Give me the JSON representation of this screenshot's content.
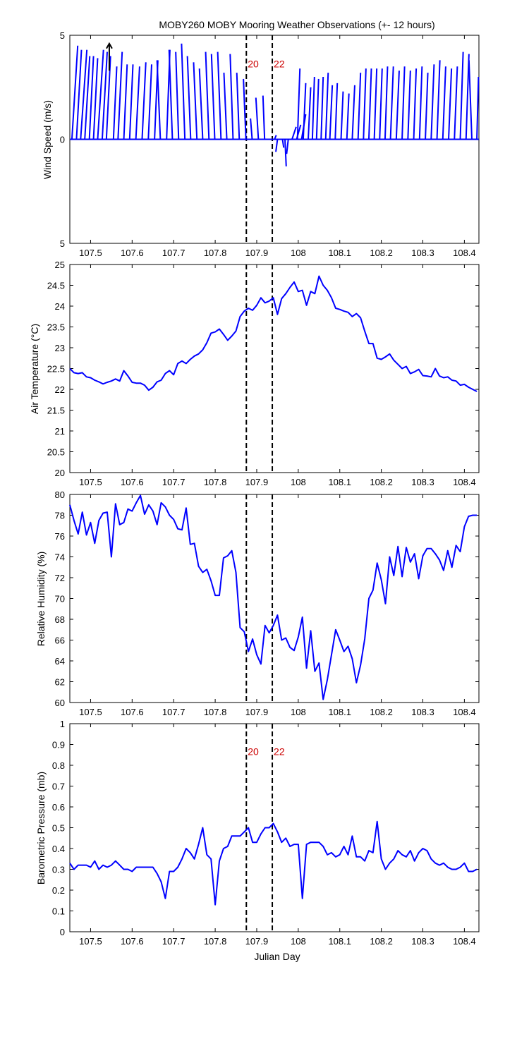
{
  "colors": {
    "series": "#0000ff",
    "axis": "#000000",
    "annotation": "#cc0000",
    "arrow": "#000000"
  },
  "chart_data": [
    {
      "id": "wind",
      "type": "quiver",
      "title": "MOBY260 MOBY Mooring Weather Observations (+- 12 hours)",
      "xlabel": "Julian Day",
      "ylabel": "Wind Speed (m/s)",
      "xlim": [
        107.45,
        108.435
      ],
      "ylim": [
        -5,
        5
      ],
      "y_tick_values": [
        5,
        0,
        -5
      ],
      "y_tick_labels": [
        "5",
        "0",
        "5"
      ],
      "x_ticks": [
        "107.5",
        "107.6",
        "107.7",
        "107.8",
        "107.9",
        "108",
        "108.1",
        "108.2",
        "108.3",
        "108.4"
      ],
      "markers": [
        107.875,
        107.9375
      ],
      "marker_labels": [
        "20",
        "22"
      ],
      "scale_arrow": {
        "x": 107.545,
        "u": 0,
        "v": 4.6
      },
      "vectors": [
        {
          "x": 107.455,
          "u": 0.014,
          "v": 4.5
        },
        {
          "x": 107.466,
          "u": 0.012,
          "v": 4.3
        },
        {
          "x": 107.476,
          "u": 0.015,
          "v": 4.3
        },
        {
          "x": 107.486,
          "u": 0.012,
          "v": 4.0
        },
        {
          "x": 107.497,
          "u": 0.01,
          "v": 4.0
        },
        {
          "x": 107.507,
          "u": 0.01,
          "v": 3.9
        },
        {
          "x": 107.517,
          "u": 0.014,
          "v": 4.3
        },
        {
          "x": 107.528,
          "u": 0.012,
          "v": 4.2
        },
        {
          "x": 107.538,
          "u": 0.01,
          "v": 4.0
        },
        {
          "x": 107.555,
          "u": 0.008,
          "v": 3.5
        },
        {
          "x": 107.566,
          "u": 0.01,
          "v": 4.2
        },
        {
          "x": 107.58,
          "u": 0.008,
          "v": 3.6
        },
        {
          "x": 107.594,
          "u": 0.008,
          "v": 3.6
        },
        {
          "x": 107.609,
          "u": 0.009,
          "v": 3.5
        },
        {
          "x": 107.624,
          "u": 0.009,
          "v": 3.7
        },
        {
          "x": 107.639,
          "u": 0.008,
          "v": 3.6
        },
        {
          "x": 107.654,
          "u": 0.008,
          "v": 3.8
        },
        {
          "x": 107.668,
          "u": -0.008,
          "v": 3.8
        },
        {
          "x": 107.683,
          "u": 0.008,
          "v": 4.3
        },
        {
          "x": 107.697,
          "u": -0.008,
          "v": 4.3
        },
        {
          "x": 107.712,
          "u": -0.007,
          "v": 4.2
        },
        {
          "x": 107.727,
          "u": -0.008,
          "v": 4.6
        },
        {
          "x": 107.741,
          "u": -0.008,
          "v": 4.0
        },
        {
          "x": 107.756,
          "u": -0.008,
          "v": 3.7
        },
        {
          "x": 107.77,
          "u": -0.008,
          "v": 3.4
        },
        {
          "x": 107.785,
          "u": -0.008,
          "v": 4.2
        },
        {
          "x": 107.799,
          "u": -0.008,
          "v": 4.1
        },
        {
          "x": 107.814,
          "u": -0.008,
          "v": 4.2
        },
        {
          "x": 107.828,
          "u": -0.007,
          "v": 3.2
        },
        {
          "x": 107.843,
          "u": -0.007,
          "v": 4.1
        },
        {
          "x": 107.858,
          "u": -0.006,
          "v": 3.2
        },
        {
          "x": 107.874,
          "u": -0.006,
          "v": 2.9
        },
        {
          "x": 107.889,
          "u": -0.004,
          "v": 1.0
        },
        {
          "x": 107.904,
          "u": -0.006,
          "v": 2.0
        },
        {
          "x": 107.919,
          "u": -0.004,
          "v": 2.1
        },
        {
          "x": 107.943,
          "u": 0.004,
          "v": 0.2
        },
        {
          "x": 107.95,
          "u": -0.004,
          "v": -0.6
        },
        {
          "x": 107.962,
          "u": 0.003,
          "v": -0.4
        },
        {
          "x": 107.968,
          "u": 0.003,
          "v": -1.3
        },
        {
          "x": 107.976,
          "u": -0.004,
          "v": -0.7
        },
        {
          "x": 107.985,
          "u": 0.01,
          "v": 0.6
        },
        {
          "x": 107.996,
          "u": 0.01,
          "v": 0.7
        },
        {
          "x": 108.008,
          "u": 0.01,
          "v": 1.2
        },
        {
          "x": 107.998,
          "u": 0.006,
          "v": 3.4
        },
        {
          "x": 108.012,
          "u": 0.006,
          "v": 2.7
        },
        {
          "x": 108.024,
          "u": 0.006,
          "v": 2.5
        },
        {
          "x": 108.034,
          "u": 0.005,
          "v": 3.0
        },
        {
          "x": 108.044,
          "u": 0.005,
          "v": 2.9
        },
        {
          "x": 108.055,
          "u": 0.005,
          "v": 3.0
        },
        {
          "x": 108.066,
          "u": 0.006,
          "v": 3.2
        },
        {
          "x": 108.076,
          "u": 0.006,
          "v": 2.6
        },
        {
          "x": 108.089,
          "u": 0.005,
          "v": 2.7
        },
        {
          "x": 108.103,
          "u": 0.005,
          "v": 2.3
        },
        {
          "x": 108.117,
          "u": 0.005,
          "v": 2.2
        },
        {
          "x": 108.13,
          "u": 0.006,
          "v": 2.6
        },
        {
          "x": 108.144,
          "u": 0.006,
          "v": 3.2
        },
        {
          "x": 108.157,
          "u": 0.006,
          "v": 3.4
        },
        {
          "x": 108.17,
          "u": 0.006,
          "v": 3.4
        },
        {
          "x": 108.183,
          "u": 0.006,
          "v": 3.4
        },
        {
          "x": 108.196,
          "u": 0.006,
          "v": 3.4
        },
        {
          "x": 108.209,
          "u": 0.006,
          "v": 3.5
        },
        {
          "x": 108.222,
          "u": 0.007,
          "v": 3.5
        },
        {
          "x": 108.236,
          "u": 0.007,
          "v": 3.3
        },
        {
          "x": 108.25,
          "u": 0.006,
          "v": 3.5
        },
        {
          "x": 108.264,
          "u": 0.006,
          "v": 3.3
        },
        {
          "x": 108.278,
          "u": 0.006,
          "v": 3.4
        },
        {
          "x": 108.292,
          "u": 0.006,
          "v": 3.5
        },
        {
          "x": 108.306,
          "u": 0.006,
          "v": 3.2
        },
        {
          "x": 108.32,
          "u": 0.007,
          "v": 3.6
        },
        {
          "x": 108.334,
          "u": 0.007,
          "v": 3.8
        },
        {
          "x": 108.348,
          "u": 0.007,
          "v": 3.5
        },
        {
          "x": 108.362,
          "u": 0.007,
          "v": 3.4
        },
        {
          "x": 108.376,
          "u": 0.007,
          "v": 3.5
        },
        {
          "x": 108.39,
          "u": 0.007,
          "v": 4.2
        },
        {
          "x": 108.404,
          "u": 0.007,
          "v": 4.1
        },
        {
          "x": 108.418,
          "u": -0.007,
          "v": 3.8
        },
        {
          "x": 108.43,
          "u": 0.004,
          "v": 3.0
        }
      ]
    },
    {
      "id": "air-temp",
      "type": "line",
      "ylabel": "Air Temperature (°C)",
      "xlim": [
        107.45,
        108.435
      ],
      "ylim": [
        20,
        25
      ],
      "y_ticks": [
        "20",
        "20.5",
        "21",
        "21.5",
        "22",
        "22.5",
        "23",
        "23.5",
        "24",
        "24.5",
        "25"
      ],
      "x_ticks": [
        "107.5",
        "107.6",
        "107.7",
        "107.8",
        "107.9",
        "108",
        "108.1",
        "108.2",
        "108.3",
        "108.4"
      ],
      "markers": [
        107.875,
        107.9375
      ],
      "x": [
        107.45,
        107.46,
        107.47,
        107.48,
        107.49,
        107.5,
        107.51,
        107.52,
        107.53,
        107.54,
        107.55,
        107.56,
        107.57,
        107.58,
        107.59,
        107.6,
        107.61,
        107.62,
        107.63,
        107.64,
        107.65,
        107.66,
        107.67,
        107.68,
        107.69,
        107.7,
        107.71,
        107.72,
        107.73,
        107.74,
        107.75,
        107.76,
        107.77,
        107.78,
        107.79,
        107.8,
        107.81,
        107.82,
        107.83,
        107.84,
        107.85,
        107.86,
        107.87,
        107.88,
        107.89,
        107.9,
        107.91,
        107.92,
        107.93,
        107.94,
        107.95,
        107.96,
        107.97,
        107.98,
        107.99,
        108.0,
        108.01,
        108.02,
        108.03,
        108.04,
        108.05,
        108.06,
        108.07,
        108.08,
        108.09,
        108.1,
        108.11,
        108.12,
        108.13,
        108.14,
        108.15,
        108.16,
        108.17,
        108.18,
        108.19,
        108.2,
        108.21,
        108.22,
        108.23,
        108.24,
        108.25,
        108.26,
        108.27,
        108.28,
        108.29,
        108.3,
        108.31,
        108.32,
        108.33,
        108.34,
        108.35,
        108.36,
        108.37,
        108.38,
        108.39,
        108.4,
        108.41,
        108.42,
        108.43
      ],
      "y": [
        22.5,
        22.4,
        22.38,
        22.4,
        22.3,
        22.28,
        22.22,
        22.18,
        22.13,
        22.17,
        22.2,
        22.25,
        22.2,
        22.45,
        22.32,
        22.17,
        22.15,
        22.15,
        22.1,
        21.98,
        22.05,
        22.18,
        22.22,
        22.38,
        22.45,
        22.35,
        22.62,
        22.68,
        22.62,
        22.72,
        22.8,
        22.85,
        22.95,
        23.12,
        23.35,
        23.38,
        23.45,
        23.32,
        23.18,
        23.28,
        23.4,
        23.75,
        23.88,
        23.95,
        23.9,
        24.02,
        24.2,
        24.08,
        24.12,
        24.2,
        23.8,
        24.18,
        24.3,
        24.45,
        24.58,
        24.35,
        24.38,
        24.02,
        24.35,
        24.3,
        24.72,
        24.5,
        24.38,
        24.2,
        23.95,
        23.92,
        23.88,
        23.85,
        23.75,
        23.82,
        23.72,
        23.4,
        23.1,
        23.1,
        22.75,
        22.72,
        22.78,
        22.85,
        22.7,
        22.6,
        22.5,
        22.55,
        22.38,
        22.42,
        22.48,
        22.33,
        22.32,
        22.3,
        22.5,
        22.32,
        22.28,
        22.3,
        22.22,
        22.2,
        22.1,
        22.12,
        22.05,
        22.0,
        21.95
      ]
    },
    {
      "id": "humidity",
      "type": "line",
      "ylabel": "Relative Humidity (%)",
      "xlim": [
        107.45,
        108.435
      ],
      "ylim": [
        60,
        80
      ],
      "y_ticks": [
        "60",
        "62",
        "64",
        "66",
        "68",
        "70",
        "72",
        "74",
        "76",
        "78",
        "80"
      ],
      "x_ticks": [
        "107.5",
        "107.6",
        "107.7",
        "107.8",
        "107.9",
        "108",
        "108.1",
        "108.2",
        "108.3",
        "108.4"
      ],
      "markers": [
        107.875,
        107.9375
      ],
      "x": [
        107.45,
        107.46,
        107.47,
        107.48,
        107.49,
        107.5,
        107.51,
        107.52,
        107.53,
        107.54,
        107.55,
        107.56,
        107.57,
        107.58,
        107.59,
        107.6,
        107.61,
        107.62,
        107.63,
        107.64,
        107.65,
        107.66,
        107.67,
        107.68,
        107.69,
        107.7,
        107.71,
        107.72,
        107.73,
        107.74,
        107.75,
        107.76,
        107.77,
        107.78,
        107.79,
        107.8,
        107.81,
        107.82,
        107.83,
        107.84,
        107.85,
        107.86,
        107.87,
        107.88,
        107.89,
        107.9,
        107.91,
        107.92,
        107.93,
        107.94,
        107.95,
        107.96,
        107.97,
        107.98,
        107.99,
        108.0,
        108.01,
        108.02,
        108.03,
        108.04,
        108.05,
        108.06,
        108.07,
        108.08,
        108.09,
        108.1,
        108.11,
        108.12,
        108.13,
        108.14,
        108.15,
        108.16,
        108.17,
        108.18,
        108.19,
        108.2,
        108.21,
        108.22,
        108.23,
        108.24,
        108.25,
        108.26,
        108.27,
        108.28,
        108.29,
        108.3,
        108.31,
        108.32,
        108.33,
        108.34,
        108.35,
        108.36,
        108.37,
        108.38,
        108.39,
        108.4,
        108.41,
        108.42,
        108.43
      ],
      "y": [
        79.0,
        77.5,
        76.2,
        78.3,
        76.1,
        77.3,
        75.3,
        77.5,
        78.2,
        78.3,
        74.0,
        79.1,
        77.1,
        77.3,
        78.6,
        78.4,
        79.2,
        79.9,
        78.1,
        79.0,
        78.4,
        77.1,
        79.2,
        78.8,
        78.0,
        77.6,
        76.7,
        76.6,
        78.7,
        75.2,
        75.3,
        73.1,
        72.5,
        72.8,
        71.7,
        70.3,
        70.3,
        73.9,
        74.1,
        74.6,
        72.5,
        67.2,
        66.8,
        64.9,
        66.1,
        64.6,
        63.7,
        67.4,
        66.7,
        67.4,
        68.4,
        66.0,
        66.2,
        65.3,
        65.0,
        66.3,
        68.2,
        63.3,
        66.9,
        63.0,
        63.8,
        60.3,
        62.2,
        64.6,
        67.0,
        66.0,
        64.9,
        65.4,
        64.2,
        61.9,
        63.6,
        66.1,
        70.0,
        70.8,
        73.4,
        71.8,
        69.5,
        74.0,
        72.2,
        75.0,
        72.1,
        74.9,
        73.5,
        74.3,
        71.9,
        74.1,
        74.8,
        74.8,
        74.3,
        73.7,
        72.7,
        74.6,
        73.0,
        75.1,
        74.5,
        76.9,
        77.9,
        78.0,
        78.0
      ]
    },
    {
      "id": "pressure",
      "type": "line",
      "xlabel": "Julian Day",
      "ylabel": "Barometric Pressure (mb)",
      "xlim": [
        107.45,
        108.435
      ],
      "ylim": [
        0,
        1
      ],
      "y_ticks": [
        "0",
        "0.1",
        "0.2",
        "0.3",
        "0.4",
        "0.5",
        "0.6",
        "0.7",
        "0.8",
        "0.9",
        "1"
      ],
      "x_ticks": [
        "107.5",
        "107.6",
        "107.7",
        "107.8",
        "107.9",
        "108",
        "108.1",
        "108.2",
        "108.3",
        "108.4"
      ],
      "markers": [
        107.875,
        107.9375
      ],
      "marker_labels": [
        "20",
        "22"
      ],
      "x": [
        107.45,
        107.46,
        107.47,
        107.48,
        107.49,
        107.5,
        107.51,
        107.52,
        107.53,
        107.54,
        107.55,
        107.56,
        107.57,
        107.58,
        107.59,
        107.6,
        107.61,
        107.62,
        107.63,
        107.64,
        107.65,
        107.66,
        107.67,
        107.68,
        107.69,
        107.7,
        107.71,
        107.72,
        107.73,
        107.74,
        107.75,
        107.76,
        107.77,
        107.78,
        107.79,
        107.8,
        107.81,
        107.82,
        107.83,
        107.84,
        107.85,
        107.86,
        107.87,
        107.88,
        107.89,
        107.9,
        107.91,
        107.92,
        107.93,
        107.94,
        107.95,
        107.96,
        107.97,
        107.98,
        107.99,
        108.0,
        108.01,
        108.02,
        108.03,
        108.04,
        108.05,
        108.06,
        108.07,
        108.08,
        108.09,
        108.1,
        108.11,
        108.12,
        108.13,
        108.14,
        108.15,
        108.16,
        108.17,
        108.18,
        108.19,
        108.2,
        108.21,
        108.22,
        108.23,
        108.24,
        108.25,
        108.26,
        108.27,
        108.28,
        108.29,
        108.3,
        108.31,
        108.32,
        108.33,
        108.34,
        108.35,
        108.36,
        108.37,
        108.38,
        108.39,
        108.4,
        108.41,
        108.42,
        108.43
      ],
      "y": [
        0.33,
        0.3,
        0.32,
        0.32,
        0.32,
        0.31,
        0.34,
        0.3,
        0.32,
        0.31,
        0.32,
        0.34,
        0.32,
        0.3,
        0.3,
        0.29,
        0.31,
        0.31,
        0.31,
        0.31,
        0.31,
        0.28,
        0.24,
        0.16,
        0.29,
        0.29,
        0.31,
        0.35,
        0.4,
        0.38,
        0.35,
        0.42,
        0.5,
        0.37,
        0.35,
        0.13,
        0.34,
        0.4,
        0.41,
        0.46,
        0.46,
        0.46,
        0.48,
        0.5,
        0.43,
        0.43,
        0.47,
        0.5,
        0.5,
        0.52,
        0.48,
        0.43,
        0.45,
        0.41,
        0.42,
        0.42,
        0.16,
        0.42,
        0.43,
        0.43,
        0.43,
        0.41,
        0.37,
        0.38,
        0.36,
        0.37,
        0.41,
        0.37,
        0.46,
        0.36,
        0.36,
        0.34,
        0.39,
        0.38,
        0.53,
        0.35,
        0.3,
        0.33,
        0.35,
        0.39,
        0.37,
        0.36,
        0.39,
        0.34,
        0.38,
        0.4,
        0.39,
        0.35,
        0.33,
        0.32,
        0.33,
        0.31,
        0.3,
        0.3,
        0.31,
        0.33,
        0.29,
        0.29,
        0.3
      ]
    }
  ]
}
